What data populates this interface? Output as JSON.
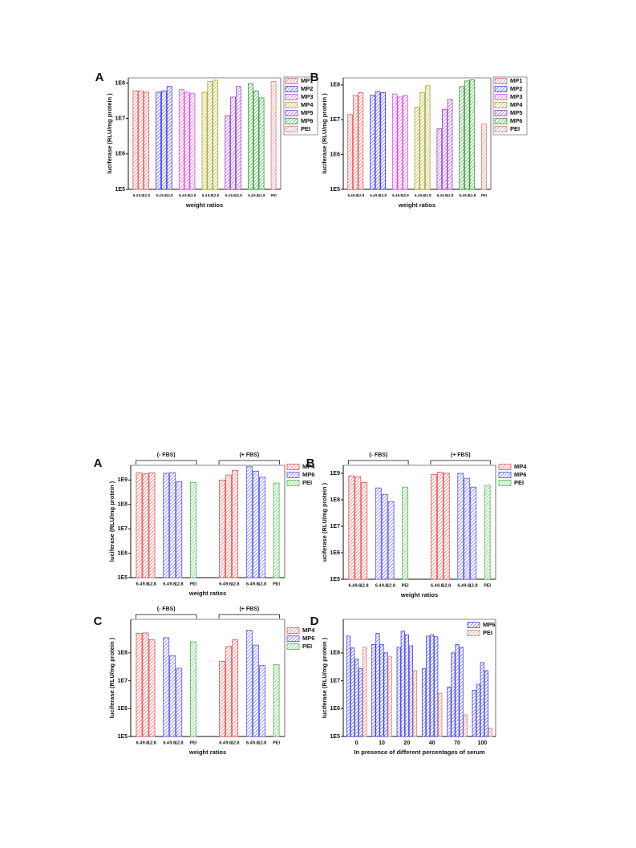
{
  "chart_data": [
    {
      "type": "bar",
      "panel": "A",
      "ylabel": "luciferase (RLU/mg protein )",
      "xlabel": "weight ratios",
      "log_scale": true,
      "categories": [
        "6.4",
        "9.6",
        "12.8",
        "6.4",
        "9.6",
        "12.8",
        "6.4",
        "9.6",
        "12.8",
        "6.4",
        "9.6",
        "12.8",
        "6.4",
        "9.6",
        "12.8",
        "6.4",
        "9.6",
        "12.8",
        "PEI"
      ],
      "series": [
        {
          "name": "MP1",
          "color": "#e05a5a",
          "values": [
            60000000.0,
            60000000.0,
            55000000.0,
            null,
            null,
            null,
            null,
            null,
            null,
            null,
            null,
            null,
            null,
            null,
            null,
            null,
            null,
            null,
            null
          ]
        },
        {
          "name": "MP2",
          "color": "#3a3ad8",
          "values": [
            null,
            null,
            null,
            55000000.0,
            60000000.0,
            80000000.0,
            null,
            null,
            null,
            null,
            null,
            null,
            null,
            null,
            null,
            null,
            null,
            null,
            null
          ]
        },
        {
          "name": "MP3",
          "color": "#d84ad8",
          "values": [
            null,
            null,
            null,
            null,
            null,
            null,
            65000000.0,
            55000000.0,
            50000000.0,
            null,
            null,
            null,
            null,
            null,
            null,
            null,
            null,
            null,
            null
          ]
        },
        {
          "name": "MP4",
          "color": "#a8a828",
          "values": [
            null,
            null,
            null,
            null,
            null,
            null,
            null,
            null,
            null,
            55000000.0,
            110000000.0,
            120000000.0,
            null,
            null,
            null,
            null,
            null,
            null,
            null
          ]
        },
        {
          "name": "MP5",
          "color": "#9a3acc",
          "values": [
            null,
            null,
            null,
            null,
            null,
            null,
            null,
            null,
            null,
            null,
            null,
            null,
            12000000.0,
            40000000.0,
            80000000.0,
            null,
            null,
            null,
            null
          ]
        },
        {
          "name": "MP6",
          "color": "#2f9a2f",
          "values": [
            null,
            null,
            null,
            null,
            null,
            null,
            null,
            null,
            null,
            null,
            null,
            null,
            null,
            null,
            null,
            95000000.0,
            60000000.0,
            38000000.0,
            null
          ]
        },
        {
          "name": "PEI",
          "color": "#e07878",
          "values": [
            null,
            null,
            null,
            null,
            null,
            null,
            null,
            null,
            null,
            null,
            null,
            null,
            null,
            null,
            null,
            null,
            null,
            null,
            110000000.0
          ]
        }
      ],
      "ylim": [
        100000.0,
        140000000.0
      ],
      "yticks": [
        {
          "value": 100000.0,
          "label": "1E5"
        },
        {
          "value": 1000000.0,
          "label": "1E6"
        },
        {
          "value": 10000000.0,
          "label": "1E7"
        },
        {
          "value": 100000000.0,
          "label": "1E8"
        }
      ]
    },
    {
      "type": "bar",
      "panel": "B",
      "ylabel": "luciferase (RLU/mg protein )",
      "xlabel": "weight ratios",
      "log_scale": true,
      "categories": [
        "6.4",
        "9.6",
        "12.8",
        "6.4",
        "9.6",
        "12.8",
        "6.4",
        "9.6",
        "12.8",
        "6.4",
        "9.6",
        "12.8",
        "6.4",
        "9.6",
        "12.8",
        "6.4",
        "9.6",
        "12.8",
        "PEI"
      ],
      "series": [
        {
          "name": "MP1",
          "color": "#e05a5a",
          "values": [
            14000000.0,
            50000000.0,
            60000000.0,
            null,
            null,
            null,
            null,
            null,
            null,
            null,
            null,
            null,
            null,
            null,
            null,
            null,
            null,
            null,
            null
          ]
        },
        {
          "name": "MP2",
          "color": "#3a3ad8",
          "values": [
            null,
            null,
            null,
            50000000.0,
            65000000.0,
            60000000.0,
            null,
            null,
            null,
            null,
            null,
            null,
            null,
            null,
            null,
            null,
            null,
            null,
            null
          ]
        },
        {
          "name": "MP3",
          "color": "#d84ad8",
          "values": [
            null,
            null,
            null,
            null,
            null,
            null,
            55000000.0,
            45000000.0,
            50000000.0,
            null,
            null,
            null,
            null,
            null,
            null,
            null,
            null,
            null,
            null
          ]
        },
        {
          "name": "MP4",
          "color": "#a8a828",
          "values": [
            null,
            null,
            null,
            null,
            null,
            null,
            null,
            null,
            null,
            23000000.0,
            60000000.0,
            95000000.0,
            null,
            null,
            null,
            null,
            null,
            null,
            null
          ]
        },
        {
          "name": "MP5",
          "color": "#9a3acc",
          "values": [
            null,
            null,
            null,
            null,
            null,
            null,
            null,
            null,
            null,
            null,
            null,
            null,
            5500000.0,
            20000000.0,
            38000000.0,
            null,
            null,
            null,
            null
          ]
        },
        {
          "name": "MP6",
          "color": "#2f9a2f",
          "values": [
            null,
            null,
            null,
            null,
            null,
            null,
            null,
            null,
            null,
            null,
            null,
            null,
            null,
            null,
            null,
            90000000.0,
            130000000.0,
            140000000.0,
            null
          ]
        },
        {
          "name": "PEI",
          "color": "#e07878",
          "values": [
            null,
            null,
            null,
            null,
            null,
            null,
            null,
            null,
            null,
            null,
            null,
            null,
            null,
            null,
            null,
            null,
            null,
            null,
            7500000.0
          ]
        }
      ],
      "ylim": [
        100000.0,
        160000000.0
      ],
      "yticks": [
        {
          "value": 100000.0,
          "label": "1E5"
        },
        {
          "value": 1000000.0,
          "label": "1E6"
        },
        {
          "value": 10000000.0,
          "label": "1E7"
        },
        {
          "value": 100000000.0,
          "label": "1E8"
        }
      ]
    },
    {
      "type": "bar",
      "panel": "A",
      "ylabel": "luciferase (RLU/mg protein )",
      "xlabel": "weight ratios",
      "log_scale": true,
      "groups": [
        "(- FBS)",
        "(+ FBS)"
      ],
      "categories": [
        "6.4",
        "9.6",
        "12.8",
        "6.4",
        "9.6",
        "12.8",
        "PEI",
        "6.4",
        "9.6",
        "12.8",
        "6.4",
        "9.6",
        "12.8",
        "PEI"
      ],
      "series": [
        {
          "name": "MP4",
          "color": "#e05050",
          "values": [
            2000000000.0,
            1800000000.0,
            2000000000.0,
            null,
            null,
            null,
            null,
            1000000000.0,
            1600000000.0,
            2500000000.0,
            null,
            null,
            null,
            null
          ]
        },
        {
          "name": "MP6",
          "color": "#5252e0",
          "values": [
            null,
            null,
            null,
            1900000000.0,
            2000000000.0,
            850000000.0,
            null,
            null,
            null,
            null,
            3500000000.0,
            2300000000.0,
            1300000000.0,
            null
          ]
        },
        {
          "name": "PEI",
          "color": "#4fb84f",
          "values": [
            null,
            null,
            null,
            null,
            null,
            null,
            800000000.0,
            null,
            null,
            null,
            null,
            null,
            null,
            750000000.0
          ]
        }
      ],
      "ylim": [
        100000.0,
        4000000000.0
      ],
      "yticks": [
        {
          "value": 100000.0,
          "label": "1E5"
        },
        {
          "value": 1000000.0,
          "label": "1E6"
        },
        {
          "value": 10000000.0,
          "label": "1E7"
        },
        {
          "value": 100000000.0,
          "label": "1E8"
        },
        {
          "value": 1000000000.0,
          "label": "1E9"
        }
      ]
    },
    {
      "type": "bar",
      "panel": "B",
      "ylabel": "uciferase (RLU/mg protein )",
      "xlabel": "weight ratios",
      "log_scale": true,
      "groups": [
        "(- FBS)",
        "(+ FBS)"
      ],
      "categories": [
        "6.4",
        "9.6",
        "12.8",
        "6.4",
        "9.6",
        "12.8",
        "PEI",
        "6.4",
        "9.6",
        "12.8",
        "6.4",
        "9.6",
        "12.8",
        "PEI"
      ],
      "series": [
        {
          "name": "MP4",
          "color": "#e05050",
          "values": [
            800000000.0,
            750000000.0,
            450000000.0,
            null,
            null,
            null,
            null,
            900000000.0,
            1100000000.0,
            1000000000.0,
            null,
            null,
            null,
            null
          ]
        },
        {
          "name": "MP6",
          "color": "#5252e0",
          "values": [
            null,
            null,
            null,
            280000000.0,
            160000000.0,
            85000000.0,
            null,
            null,
            null,
            null,
            1000000000.0,
            650000000.0,
            300000000.0,
            null
          ]
        },
        {
          "name": "PEI",
          "color": "#4fb84f",
          "values": [
            null,
            null,
            null,
            null,
            null,
            null,
            300000000.0,
            null,
            null,
            null,
            null,
            null,
            null,
            350000000.0
          ]
        }
      ],
      "ylim": [
        100000.0,
        2000000000.0
      ],
      "yticks": [
        {
          "value": 100000.0,
          "label": "1E5"
        },
        {
          "value": 1000000.0,
          "label": "1E6"
        },
        {
          "value": 10000000.0,
          "label": "1E7"
        },
        {
          "value": 100000000.0,
          "label": "1E8"
        },
        {
          "value": 1000000000.0,
          "label": "1E9"
        }
      ]
    },
    {
      "type": "bar",
      "panel": "C",
      "ylabel": "luciferase (RLU/mg protein )",
      "xlabel": "weight ratios",
      "log_scale": true,
      "groups": [
        "(- FBS)",
        "(+ FBS)"
      ],
      "categories": [
        "6.4",
        "9.6",
        "12.8",
        "6.4",
        "9.6",
        "12.8",
        "PEI",
        "6.4",
        "9.6",
        "12.8",
        "6.4",
        "9.6",
        "12.8",
        "PEI"
      ],
      "series": [
        {
          "name": "MP4",
          "color": "#e05050",
          "values": [
            500000000.0,
            520000000.0,
            300000000.0,
            null,
            null,
            null,
            null,
            50000000.0,
            170000000.0,
            300000000.0,
            null,
            null,
            null,
            null
          ]
        },
        {
          "name": "MP6",
          "color": "#5252e0",
          "values": [
            null,
            null,
            null,
            350000000.0,
            80000000.0,
            28000000.0,
            null,
            null,
            null,
            null,
            650000000.0,
            190000000.0,
            35000000.0,
            null
          ]
        },
        {
          "name": "PEI",
          "color": "#4fb84f",
          "values": [
            null,
            null,
            null,
            null,
            null,
            null,
            250000000.0,
            null,
            null,
            null,
            null,
            null,
            null,
            38000000.0
          ]
        }
      ],
      "ylim": [
        100000.0,
        1600000000.0
      ],
      "yticks": [
        {
          "value": 100000.0,
          "label": "1E5"
        },
        {
          "value": 1000000.0,
          "label": "1E6"
        },
        {
          "value": 10000000.0,
          "label": "1E7"
        },
        {
          "value": 100000000.0,
          "label": "1E8"
        }
      ]
    },
    {
      "type": "bar",
      "panel": "D",
      "ylabel": "luciferase (RLU/mg protein )",
      "xlabel": "In presence of different percentages of serum",
      "log_scale": true,
      "categories": [
        "0",
        "10",
        "20",
        "40",
        "70",
        "100"
      ],
      "series": [
        {
          "name": "MP6",
          "color": "#4040d8",
          "values": [
            [
              400000000.0,
              150000000.0,
              60000000.0,
              27000000.0
            ],
            [
              200000000.0,
              500000000.0,
              200000000.0,
              100000000.0
            ],
            [
              160000000.0,
              600000000.0,
              450000000.0,
              180000000.0
            ],
            [
              27000000.0,
              400000000.0,
              450000000.0,
              380000000.0
            ],
            [
              6000000.0,
              100000000.0,
              200000000.0,
              160000000.0
            ],
            [
              4500000.0,
              7500000.0,
              45000000.0,
              23000000.0
            ]
          ]
        },
        {
          "name": "PEI",
          "color": "#e07878",
          "values": [
            160000000.0,
            75000000.0,
            23000000.0,
            3500000.0,
            600000.0,
            200000.0
          ]
        }
      ],
      "ylim": [
        100000.0,
        1600000000.0
      ],
      "yticks": [
        {
          "value": 100000.0,
          "label": "1E5"
        },
        {
          "value": 1000000.0,
          "label": "1E6"
        },
        {
          "value": 10000000.0,
          "label": "1E7"
        },
        {
          "value": 100000000.0,
          "label": "1E8"
        }
      ]
    }
  ]
}
